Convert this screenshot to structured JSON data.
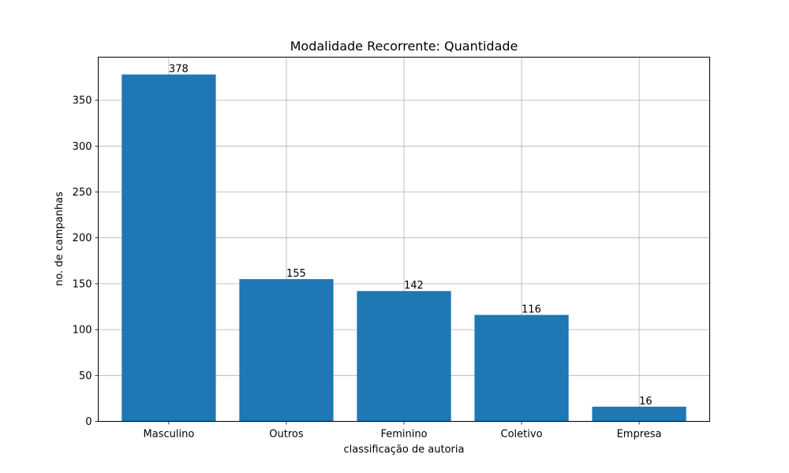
{
  "chart_data": {
    "type": "bar",
    "title": "Modalidade Recorrente: Quantidade",
    "xlabel": "classificação de autoria",
    "ylabel": "no. de campanhas",
    "categories": [
      "Masculino",
      "Outros",
      "Feminino",
      "Coletivo",
      "Empresa"
    ],
    "values": [
      378,
      155,
      142,
      116,
      16
    ],
    "data_labels": [
      "378",
      "155",
      "142",
      "116",
      "16"
    ],
    "yticks": [
      0,
      50,
      100,
      150,
      200,
      250,
      300,
      350
    ],
    "ylim": [
      0,
      396.9
    ],
    "grid": true,
    "bar_color": "#1f77b4"
  }
}
